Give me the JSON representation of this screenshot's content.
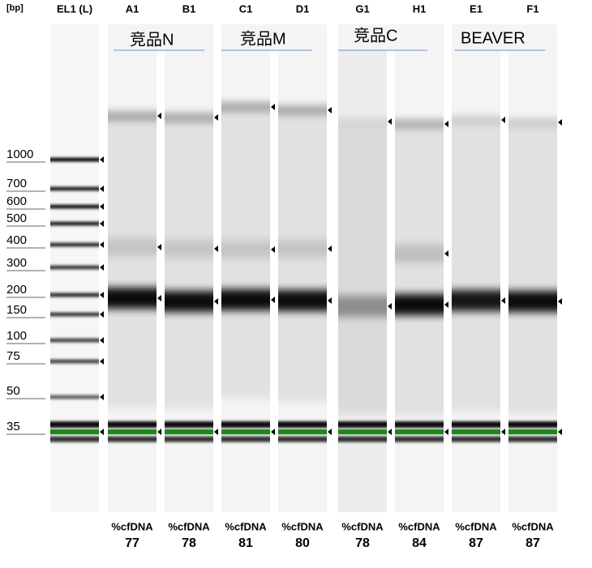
{
  "header": {
    "unit": "[bp]",
    "ladder_lane": "EL1 (L)"
  },
  "ladder": [
    1000,
    700,
    600,
    500,
    400,
    300,
    200,
    150,
    100,
    75,
    50,
    35
  ],
  "groups": [
    {
      "label": "竞品N"
    },
    {
      "label": "竞品M"
    },
    {
      "label": "竞品C"
    },
    {
      "label": "BEAVER"
    }
  ],
  "lanes": [
    {
      "id": "A1",
      "metric": "%cfDNA",
      "value": 77
    },
    {
      "id": "B1",
      "metric": "%cfDNA",
      "value": 78
    },
    {
      "id": "C1",
      "metric": "%cfDNA",
      "value": 81
    },
    {
      "id": "D1",
      "metric": "%cfDNA",
      "value": 80
    },
    {
      "id": "G1",
      "metric": "%cfDNA",
      "value": 78
    },
    {
      "id": "H1",
      "metric": "%cfDNA",
      "value": 84
    },
    {
      "id": "E1",
      "metric": "%cfDNA",
      "value": 87
    },
    {
      "id": "F1",
      "metric": "%cfDNA",
      "value": 87
    }
  ]
}
